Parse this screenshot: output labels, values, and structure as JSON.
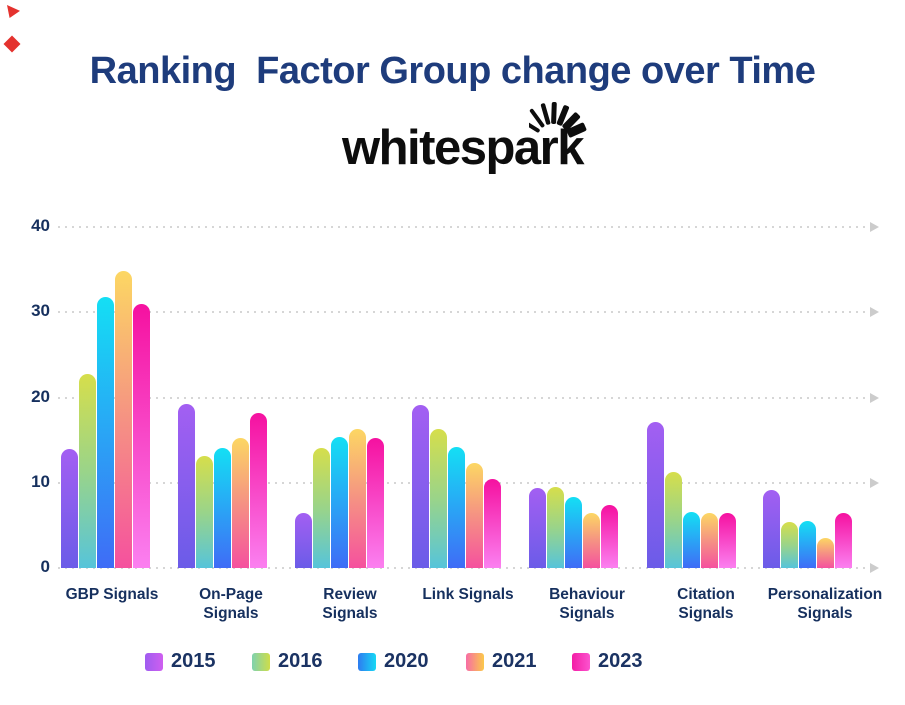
{
  "title": "Ranking  Factor Group change over Time",
  "title_color": "#1e3c7c",
  "logo": {
    "text": "whitespark",
    "color": "#0d0d0d",
    "icon": "spark-burst-icon"
  },
  "decorations": {
    "corner_marks_color": "#e4322e"
  },
  "chart_data": {
    "type": "bar",
    "title": "Ranking Factor Group change over Time",
    "categories": [
      "GBP Signals",
      "On-Page Signals",
      "Review Signals",
      "Link Signals",
      "Behaviour Signals",
      "Citation Signals",
      "Personalization Signals"
    ],
    "category_label_lines": [
      [
        "GBP Signals"
      ],
      [
        "On-Page",
        "Signals"
      ],
      [
        "Review",
        "Signals"
      ],
      [
        "Link Signals"
      ],
      [
        "Behaviour",
        "Signals"
      ],
      [
        "Citation",
        "Signals"
      ],
      [
        "Personalization",
        "Signals"
      ]
    ],
    "series": [
      {
        "name": "2015",
        "values": [
          14.0,
          19.2,
          6.4,
          19.1,
          9.4,
          17.1,
          9.2
        ],
        "bar_gradient": [
          "#a35ff2",
          "#6b5ce8"
        ],
        "legend_gradient": [
          "#9f5cf0",
          "#cf5ff0"
        ]
      },
      {
        "name": "2016",
        "values": [
          22.8,
          13.1,
          14.1,
          16.3,
          9.5,
          11.3,
          5.4
        ],
        "bar_gradient": [
          "#d6de4b",
          "#9ad489",
          "#56c4da"
        ],
        "legend_gradient": [
          "#7fd2ae",
          "#cedd4a"
        ]
      },
      {
        "name": "2020",
        "values": [
          31.8,
          14.1,
          15.4,
          14.2,
          8.3,
          6.6,
          5.5
        ],
        "bar_gradient": [
          "#14dff4",
          "#3f6cf6"
        ],
        "legend_gradient": [
          "#2e7bf0",
          "#17d8f5"
        ]
      },
      {
        "name": "2021",
        "values": [
          34.8,
          15.3,
          16.3,
          12.3,
          6.5,
          6.5,
          3.5
        ],
        "bar_gradient": [
          "#fcd763",
          "#f59283",
          "#f5519e"
        ],
        "legend_gradient": [
          "#f76da5",
          "#fbc94b"
        ]
      },
      {
        "name": "2023",
        "values": [
          31.0,
          18.2,
          15.3,
          10.4,
          7.4,
          6.4,
          6.5
        ],
        "bar_gradient": [
          "#f511a0",
          "#fb80f0"
        ],
        "legend_gradient": [
          "#f31da5",
          "#fc54cf"
        ]
      }
    ],
    "y_ticks": [
      0,
      10,
      20,
      30,
      40
    ],
    "ylim": [
      0,
      40
    ],
    "grid": "horizontal dotted lines with right arrows",
    "grid_color": "#d6d6d6",
    "axis_label_color": "#16305e",
    "legend_position": "bottom"
  }
}
